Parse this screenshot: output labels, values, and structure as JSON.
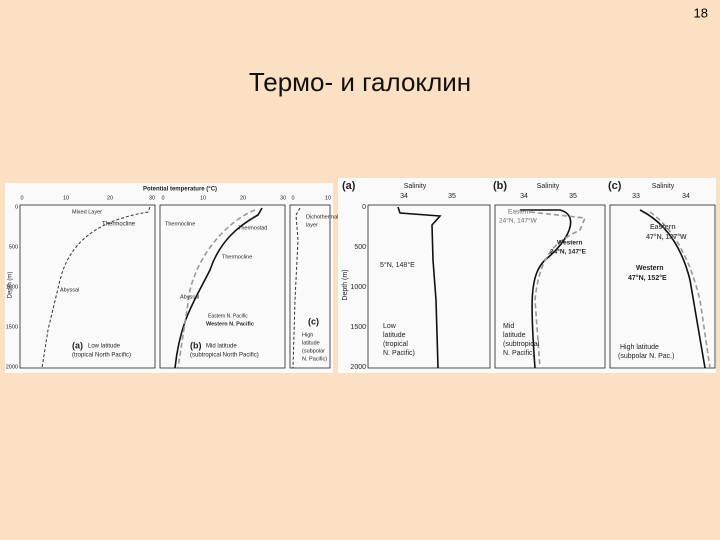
{
  "slide_number": "18",
  "title": "Термо- и галоклин",
  "left_figure": {
    "x_title": "Potential temperature (°C)",
    "y_title": "Depth (m)",
    "x_ticks": [
      "0",
      "10",
      "20",
      "30",
      "0",
      "10",
      "20",
      "30",
      "0",
      "10"
    ],
    "y_ticks": [
      "0",
      "500",
      "1000",
      "1500",
      "2000"
    ],
    "panels": [
      {
        "label": "(a)",
        "caption": [
          "Low latitude",
          "(tropical North Pacific)"
        ],
        "notes": [
          "Mixed Layer",
          "Thermocline",
          "Abyssal"
        ]
      },
      {
        "label": "(b)",
        "caption": [
          "Mid latitude",
          "(subtropical North Pacific)"
        ],
        "notes": [
          "Thermocline",
          "Thermostad",
          "Thermocline",
          "Abyssal",
          "Eastern N. Pacific",
          "Western N. Pacific"
        ]
      },
      {
        "label": "(c)",
        "caption": [
          "High",
          "latitude",
          "(subpolar",
          "N. Pacific)"
        ],
        "notes": [
          "Dichothermal",
          "layer"
        ]
      }
    ]
  },
  "right_figure": {
    "y_title": "Depth (m)",
    "y_ticks": [
      "0",
      "500",
      "1000",
      "1500",
      "2000"
    ],
    "panels": [
      {
        "label": "(a)",
        "x_title": "Salinity",
        "x_ticks": [
          "34",
          "35"
        ],
        "notes": [
          "5°N, 148°E"
        ],
        "caption": [
          "Low",
          "latitude",
          "(tropical",
          "N. Pacific)"
        ]
      },
      {
        "label": "(b)",
        "x_title": "Salinity",
        "x_ticks": [
          "34",
          "35"
        ],
        "notes": [
          "Eastern",
          "24°N, 147°W",
          "Western",
          "24°N, 147°E"
        ],
        "caption": [
          "Mid",
          "latitude",
          "(subtropical",
          "N. Pacific)"
        ]
      },
      {
        "label": "(c)",
        "x_title": "Salinity",
        "x_ticks": [
          "33",
          "34"
        ],
        "notes": [
          "Eastern",
          "47°N, 137°W",
          "Western",
          "47°N, 152°E"
        ],
        "caption": [
          "High latitude",
          "(subpolar N. Pac.)"
        ]
      }
    ]
  }
}
